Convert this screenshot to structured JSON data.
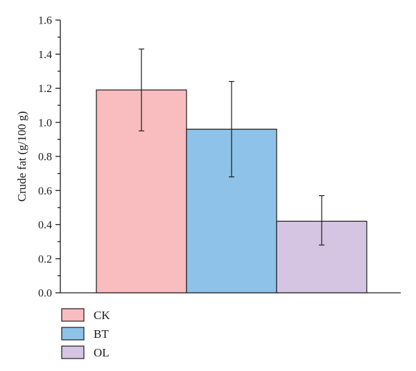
{
  "chart_data": {
    "type": "bar",
    "title": "",
    "xlabel": "",
    "ylabel": "Crude fat (g/100 g)",
    "ylim": [
      0,
      1.6
    ],
    "yticks": [
      "0.0",
      "0.2",
      "0.4",
      "0.6",
      "0.8",
      "1.0",
      "1.2",
      "1.4",
      "1.6"
    ],
    "grid": false,
    "legend_position": "bottom-left",
    "series": [
      {
        "name": "CK",
        "value": 1.19,
        "error_low": 0.95,
        "error_high": 1.43,
        "color": "#f9bcbf"
      },
      {
        "name": "BT",
        "value": 0.96,
        "error_low": 0.68,
        "error_high": 1.24,
        "color": "#8ec2e8"
      },
      {
        "name": "OL",
        "value": 0.42,
        "error_low": 0.28,
        "error_high": 0.57,
        "color": "#d5c5e2"
      }
    ]
  }
}
